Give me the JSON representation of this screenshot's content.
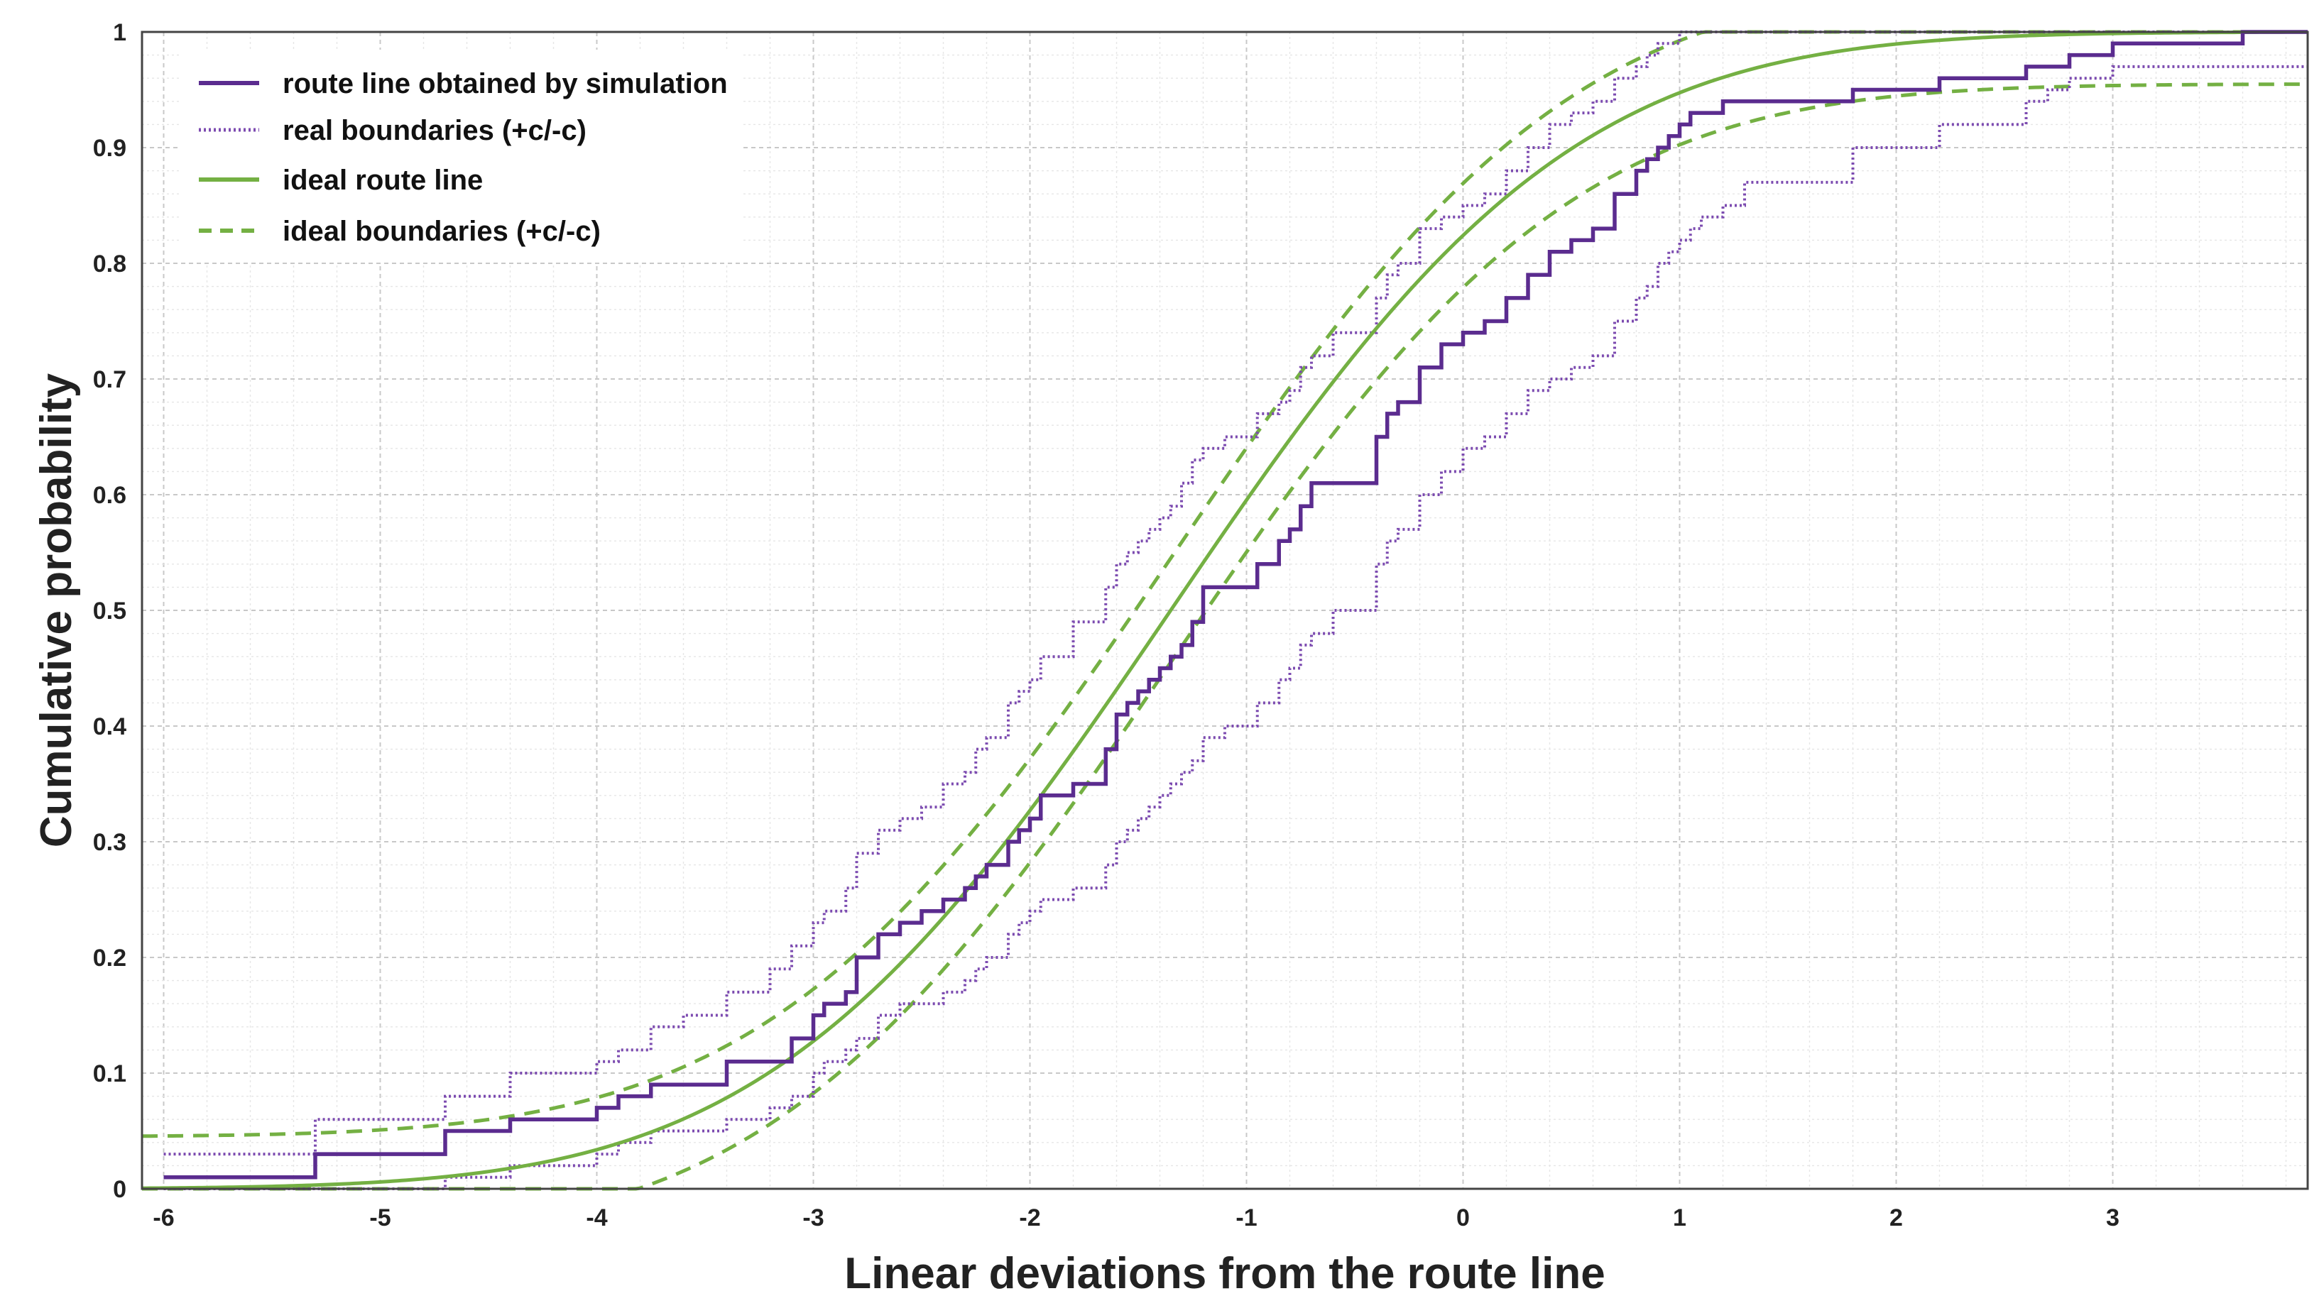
{
  "chart_data": {
    "type": "line",
    "title": "",
    "xlabel": "Linear deviations from the route line",
    "ylabel": "Cumulative probability",
    "xlim": [
      -6.1,
      3.9
    ],
    "ylim": [
      0,
      1
    ],
    "xticks": [
      -6,
      -5,
      -4,
      -3,
      -2,
      -1,
      0,
      1,
      2,
      3
    ],
    "yticks": [
      0,
      0.1,
      0.2,
      0.3,
      0.4,
      0.5,
      0.6,
      0.7,
      0.8,
      0.9,
      1
    ],
    "xtick_labels": [
      "-6",
      "-5",
      "-4",
      "-3",
      "-2",
      "-1",
      "0",
      "1",
      "2",
      "3"
    ],
    "ytick_labels": [
      "0",
      "0.1",
      "0.2",
      "0.3",
      "0.4",
      "0.5",
      "0.6",
      "0.7",
      "0.8",
      "0.9",
      "1"
    ],
    "grid": true,
    "legend_position": "top-left",
    "colors": {
      "simulation": "#5b2c8f",
      "real_bounds": "#7c4bb0",
      "ideal": "#74b043"
    },
    "series": [
      {
        "name": "route line obtained by simulation",
        "style": "solid-step",
        "x": [
          -6.0,
          -5.3,
          -4.7,
          -4.6,
          -4.4,
          -4.0,
          -3.9,
          -3.75,
          -3.6,
          -3.4,
          -3.2,
          -3.1,
          -3.0,
          -2.95,
          -2.85,
          -2.8,
          -2.7,
          -2.6,
          -2.5,
          -2.4,
          -2.3,
          -2.25,
          -2.2,
          -2.1,
          -2.05,
          -2.0,
          -1.95,
          -1.8,
          -1.65,
          -1.6,
          -1.55,
          -1.5,
          -1.45,
          -1.4,
          -1.35,
          -1.3,
          -1.25,
          -1.2,
          -1.1,
          -0.95,
          -0.85,
          -0.8,
          -0.75,
          -0.7,
          -0.6,
          -0.4,
          -0.35,
          -0.3,
          -0.2,
          -0.1,
          0.0,
          0.1,
          0.2,
          0.3,
          0.4,
          0.5,
          0.6,
          0.7,
          0.8,
          0.85,
          0.9,
          0.95,
          1.0,
          1.05,
          1.1,
          1.2,
          1.3,
          1.8,
          2.2,
          2.6,
          2.7,
          2.8,
          2.9,
          3.0,
          3.4,
          3.6,
          3.9
        ],
        "y": [
          0.01,
          0.03,
          0.05,
          0.05,
          0.06,
          0.07,
          0.08,
          0.09,
          0.09,
          0.11,
          0.11,
          0.13,
          0.15,
          0.16,
          0.17,
          0.2,
          0.22,
          0.23,
          0.24,
          0.25,
          0.26,
          0.27,
          0.28,
          0.3,
          0.31,
          0.32,
          0.34,
          0.35,
          0.38,
          0.41,
          0.42,
          0.43,
          0.44,
          0.45,
          0.46,
          0.47,
          0.49,
          0.52,
          0.52,
          0.54,
          0.56,
          0.57,
          0.59,
          0.61,
          0.61,
          0.65,
          0.67,
          0.68,
          0.71,
          0.73,
          0.74,
          0.75,
          0.77,
          0.79,
          0.81,
          0.82,
          0.83,
          0.86,
          0.88,
          0.89,
          0.9,
          0.91,
          0.92,
          0.93,
          0.93,
          0.94,
          0.94,
          0.95,
          0.96,
          0.97,
          0.97,
          0.98,
          0.98,
          0.99,
          0.99,
          1.0,
          1.0
        ]
      },
      {
        "name": "real boundaries (+c/-c)",
        "style": "dotted-step",
        "boundaries": [
          {
            "side": "upper",
            "x": [
              -6.0,
              -5.3,
              -4.7,
              -4.6,
              -4.4,
              -4.0,
              -3.9,
              -3.75,
              -3.6,
              -3.4,
              -3.2,
              -3.1,
              -3.0,
              -2.95,
              -2.85,
              -2.8,
              -2.7,
              -2.6,
              -2.5,
              -2.4,
              -2.3,
              -2.25,
              -2.2,
              -2.1,
              -2.05,
              -2.0,
              -1.95,
              -1.8,
              -1.65,
              -1.6,
              -1.55,
              -1.5,
              -1.45,
              -1.4,
              -1.35,
              -1.3,
              -1.25,
              -1.2,
              -1.1,
              -0.95,
              -0.85,
              -0.8,
              -0.75,
              -0.7,
              -0.6,
              -0.4,
              -0.35,
              -0.3,
              -0.2,
              -0.1,
              0.0,
              0.1,
              0.2,
              0.3,
              0.4,
              0.5,
              0.6,
              0.7,
              0.8,
              0.85,
              0.9,
              0.95,
              1.0,
              1.05,
              1.1,
              1.2,
              1.3,
              1.8,
              2.2,
              2.6,
              2.7,
              2.8,
              2.9,
              3.0,
              3.4,
              3.6,
              3.9
            ],
            "y": [
              0.03,
              0.06,
              0.08,
              0.08,
              0.1,
              0.11,
              0.12,
              0.14,
              0.15,
              0.17,
              0.19,
              0.21,
              0.23,
              0.24,
              0.26,
              0.29,
              0.31,
              0.32,
              0.33,
              0.35,
              0.36,
              0.38,
              0.39,
              0.42,
              0.43,
              0.44,
              0.46,
              0.49,
              0.52,
              0.54,
              0.55,
              0.56,
              0.57,
              0.58,
              0.59,
              0.61,
              0.63,
              0.64,
              0.65,
              0.67,
              0.68,
              0.69,
              0.71,
              0.72,
              0.74,
              0.77,
              0.79,
              0.8,
              0.83,
              0.84,
              0.85,
              0.86,
              0.88,
              0.9,
              0.92,
              0.93,
              0.94,
              0.96,
              0.97,
              0.98,
              0.99,
              0.99,
              1.0,
              1.0,
              1.0,
              1.0,
              1.0,
              1.0,
              1.0,
              1.0,
              1.0,
              1.0,
              1.0,
              1.0,
              1.0,
              1.0,
              1.0
            ]
          },
          {
            "side": "lower",
            "x": [
              -6.0,
              -5.3,
              -4.7,
              -4.6,
              -4.4,
              -4.0,
              -3.9,
              -3.75,
              -3.6,
              -3.4,
              -3.2,
              -3.1,
              -3.0,
              -2.95,
              -2.85,
              -2.8,
              -2.7,
              -2.6,
              -2.5,
              -2.4,
              -2.3,
              -2.25,
              -2.2,
              -2.1,
              -2.05,
              -2.0,
              -1.95,
              -1.8,
              -1.65,
              -1.6,
              -1.55,
              -1.5,
              -1.45,
              -1.4,
              -1.35,
              -1.3,
              -1.25,
              -1.2,
              -1.1,
              -0.95,
              -0.85,
              -0.8,
              -0.75,
              -0.7,
              -0.6,
              -0.4,
              -0.35,
              -0.3,
              -0.2,
              -0.1,
              0.0,
              0.1,
              0.2,
              0.3,
              0.4,
              0.5,
              0.6,
              0.7,
              0.8,
              0.85,
              0.9,
              0.95,
              1.0,
              1.05,
              1.1,
              1.2,
              1.3,
              1.8,
              2.2,
              2.6,
              2.7,
              2.8,
              2.9,
              3.0,
              3.4,
              3.6,
              3.9
            ],
            "y": [
              0.0,
              0.0,
              0.01,
              0.01,
              0.02,
              0.03,
              0.04,
              0.05,
              0.05,
              0.06,
              0.07,
              0.08,
              0.1,
              0.11,
              0.12,
              0.13,
              0.15,
              0.16,
              0.16,
              0.17,
              0.18,
              0.19,
              0.2,
              0.22,
              0.23,
              0.24,
              0.25,
              0.26,
              0.28,
              0.3,
              0.31,
              0.32,
              0.33,
              0.34,
              0.35,
              0.36,
              0.37,
              0.39,
              0.4,
              0.42,
              0.44,
              0.45,
              0.47,
              0.48,
              0.5,
              0.54,
              0.56,
              0.57,
              0.6,
              0.62,
              0.64,
              0.65,
              0.67,
              0.69,
              0.7,
              0.71,
              0.72,
              0.75,
              0.77,
              0.78,
              0.8,
              0.81,
              0.82,
              0.83,
              0.84,
              0.85,
              0.87,
              0.9,
              0.92,
              0.94,
              0.95,
              0.96,
              0.96,
              0.97,
              0.97,
              0.97,
              0.97
            ]
          }
        ]
      },
      {
        "name": "ideal route line",
        "style": "solid",
        "distribution": {
          "kind": "normal-cdf",
          "mean": -1.35,
          "sd": 1.45
        }
      },
      {
        "name": "ideal boundaries (+c/-c)",
        "style": "dashed",
        "offsets": [
          0.045,
          -0.045
        ]
      }
    ]
  }
}
